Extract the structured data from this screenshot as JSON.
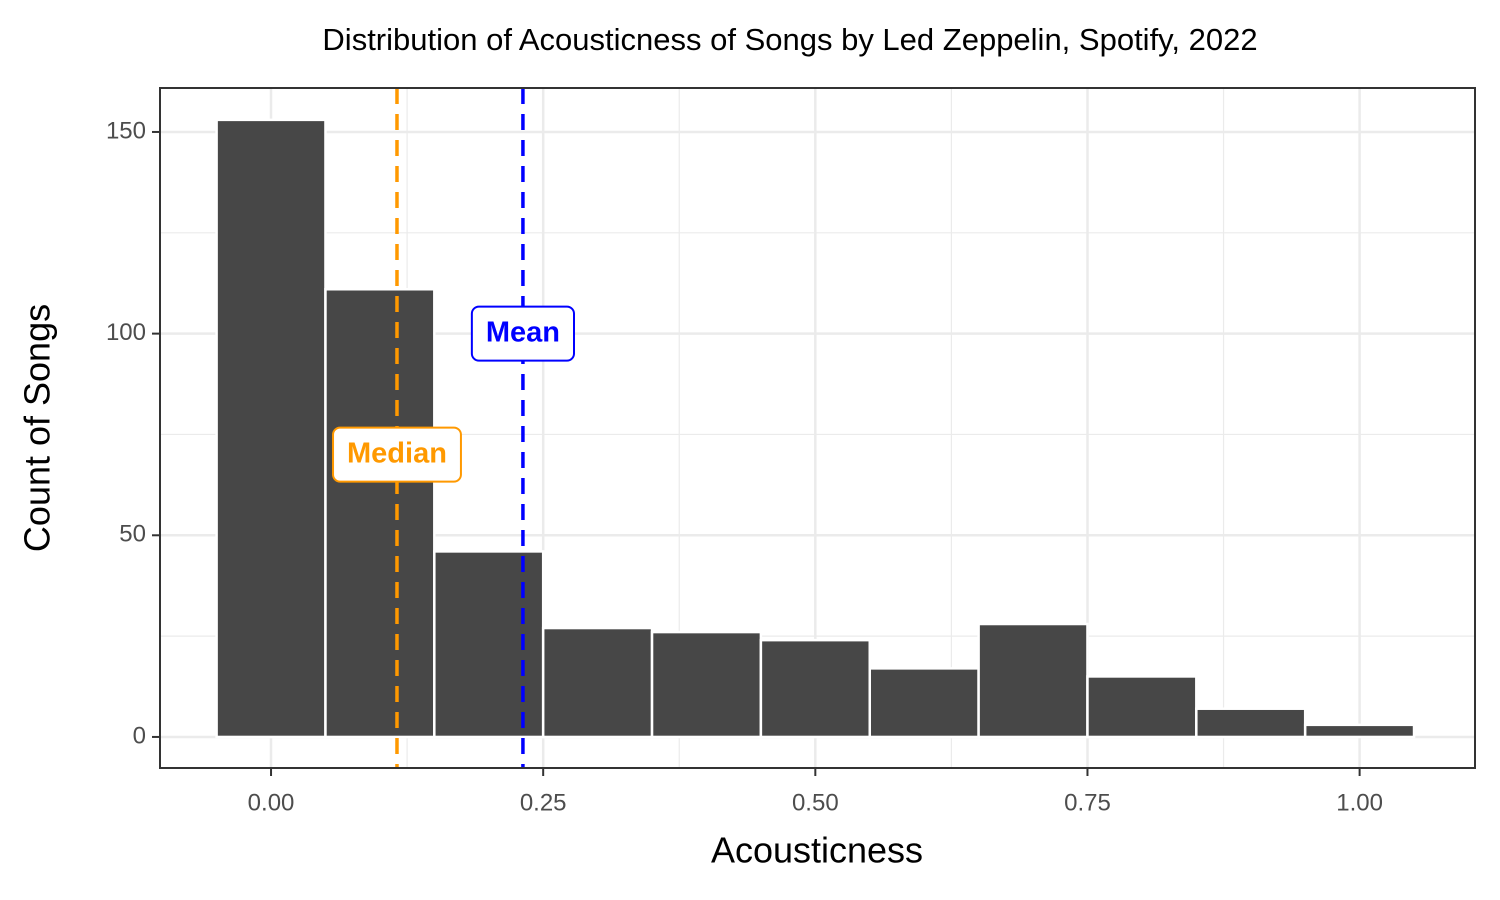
{
  "chart_data": {
    "type": "histogram",
    "title": "Distribution of Acousticness of Songs by Led Zeppelin, Spotify, 2022",
    "x_label": "Acousticness",
    "y_label": "Count of Songs",
    "bins": [
      -0.05,
      0.05,
      0.15,
      0.25,
      0.35,
      0.45,
      0.55,
      0.65,
      0.75,
      0.85,
      0.95,
      1.05
    ],
    "values": [
      153,
      111,
      46,
      27,
      26,
      24,
      17,
      28,
      15,
      7,
      3
    ],
    "color": "#474747",
    "xlim": [
      -0.102,
      1.106
    ],
    "ylim": [
      -7.7,
      160.9
    ],
    "xticks": [
      {
        "value": 0,
        "label": "0.00"
      },
      {
        "value": 0.25,
        "label": "0.25"
      },
      {
        "value": 0.5,
        "label": "0.50"
      },
      {
        "value": 0.75,
        "label": "0.75"
      },
      {
        "value": 1,
        "label": "1.00"
      }
    ],
    "yticks": [
      0,
      50,
      100,
      150
    ],
    "grid": true,
    "reference_lines": [
      {
        "label": "Median",
        "x": 0.1157,
        "label_y": 70,
        "color": "#ff9900"
      },
      {
        "label": "Mean",
        "x": 0.2314,
        "label_y": 100,
        "color": "#0000ff"
      }
    ]
  }
}
